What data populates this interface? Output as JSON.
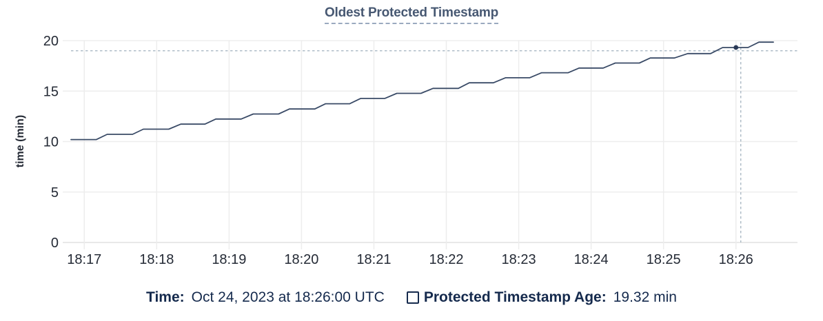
{
  "header": {
    "title": "Oldest Protected Timestamp"
  },
  "y_axis": {
    "title": "time (min)"
  },
  "colors": {
    "title": "#475872",
    "title_underline": "#9aa9bf",
    "line": "#394a66",
    "marker": "#2b3a57",
    "crosshair": "#a9b8c4",
    "grid": "#ededed",
    "axis": "#e0e0e0",
    "tick_text": "#242a35",
    "footer_text": "#152a4d"
  },
  "chart_data": {
    "type": "line",
    "title": "Oldest Protected Timestamp",
    "xlabel": "",
    "ylabel": "time (min)",
    "ylim": [
      0,
      20
    ],
    "y_ticks": [
      0,
      5,
      10,
      15,
      20
    ],
    "x_ticks": [
      "18:17",
      "18:18",
      "18:19",
      "18:20",
      "18:21",
      "18:22",
      "18:23",
      "18:24",
      "18:25",
      "18:26"
    ],
    "x_domain": [
      "18:16:49",
      "18:26:51"
    ],
    "grid": true,
    "legend_position": "bottom",
    "series": [
      {
        "name": "Protected Timestamp Age",
        "unit": "min",
        "points": [
          [
            "18:16:49",
            10.2
          ],
          [
            "18:17:10",
            10.2
          ],
          [
            "18:17:19",
            10.72
          ],
          [
            "18:17:40",
            10.72
          ],
          [
            "18:17:49",
            11.23
          ],
          [
            "18:18:10",
            11.23
          ],
          [
            "18:18:20",
            11.73
          ],
          [
            "18:18:40",
            11.73
          ],
          [
            "18:18:49",
            12.23
          ],
          [
            "18:19:10",
            12.23
          ],
          [
            "18:19:20",
            12.73
          ],
          [
            "18:19:41",
            12.73
          ],
          [
            "18:19:50",
            13.23
          ],
          [
            "18:20:11",
            13.23
          ],
          [
            "18:20:20",
            13.75
          ],
          [
            "18:20:40",
            13.75
          ],
          [
            "18:20:49",
            14.27
          ],
          [
            "18:21:09",
            14.27
          ],
          [
            "18:21:19",
            14.78
          ],
          [
            "18:21:39",
            14.78
          ],
          [
            "18:21:49",
            15.27
          ],
          [
            "18:22:10",
            15.27
          ],
          [
            "18:22:19",
            15.82
          ],
          [
            "18:22:39",
            15.82
          ],
          [
            "18:22:49",
            16.32
          ],
          [
            "18:23:09",
            16.32
          ],
          [
            "18:23:19",
            16.82
          ],
          [
            "18:23:41",
            16.82
          ],
          [
            "18:23:50",
            17.28
          ],
          [
            "18:24:10",
            17.28
          ],
          [
            "18:24:20",
            17.78
          ],
          [
            "18:24:40",
            17.78
          ],
          [
            "18:24:49",
            18.28
          ],
          [
            "18:25:09",
            18.28
          ],
          [
            "18:25:20",
            18.72
          ],
          [
            "18:25:39",
            18.72
          ],
          [
            "18:25:49",
            19.32
          ],
          [
            "18:26:10",
            19.32
          ],
          [
            "18:26:19",
            19.85
          ],
          [
            "18:26:31",
            19.85
          ]
        ]
      }
    ],
    "hover": {
      "time": "18:26:00",
      "value": 19.32,
      "crosshair_time": "18:26:04",
      "crosshair_value": 19.0
    }
  },
  "footer": {
    "time_label": "Time:",
    "time_value": "Oct 24, 2023 at 18:26:00 UTC",
    "series_label": "Protected Timestamp Age:",
    "series_value": "19.32 min"
  }
}
